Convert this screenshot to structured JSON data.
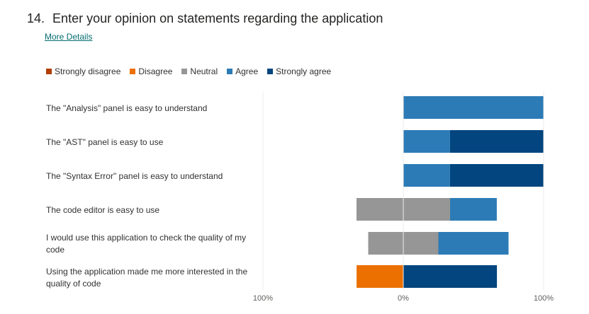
{
  "question": {
    "number": "14.",
    "title": "Enter your opinion on statements regarding the application",
    "more_details": "More Details"
  },
  "chart_data": {
    "type": "bar",
    "orientation": "horizontal-diverging",
    "stacked": true,
    "legend_position": "top-left",
    "grid": false,
    "xlim": [
      -100,
      100
    ],
    "x_tick_labels": [
      "100%",
      "0%",
      "100%"
    ],
    "categories": [
      "The \"Analysis\" panel is easy to understand",
      "The \"AST\" panel is easy to use",
      "The \"Syntax Error\" panel is easy to understand",
      "The code editor is easy to use",
      "I would use this application to check the quality of my code",
      "Using the application made me more interested in the quality of code"
    ],
    "series": [
      {
        "name": "Strongly disagree",
        "color": "#b33f00",
        "values": [
          0,
          0,
          0,
          0,
          0,
          0
        ]
      },
      {
        "name": "Disagree",
        "color": "#eb7000",
        "values": [
          0,
          0,
          0,
          0,
          0,
          33.3
        ]
      },
      {
        "name": "Neutral",
        "color": "#969696",
        "values": [
          0,
          0,
          0,
          66.7,
          50,
          0
        ]
      },
      {
        "name": "Agree",
        "color": "#2c7bb6",
        "values": [
          100,
          33.3,
          33.3,
          33.3,
          50,
          0
        ]
      },
      {
        "name": "Strongly agree",
        "color": "#02457f",
        "values": [
          0,
          66.7,
          66.7,
          0,
          0,
          66.7
        ]
      }
    ]
  }
}
